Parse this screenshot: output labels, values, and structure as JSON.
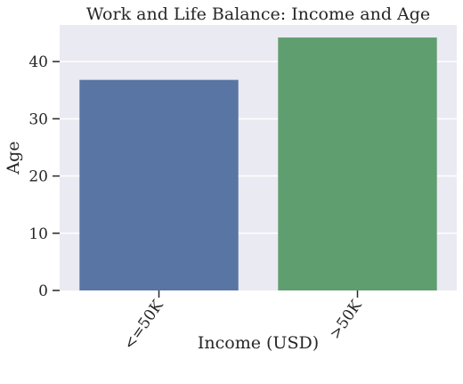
{
  "chart_data": {
    "type": "bar",
    "title": "Work and Life Balance: Income and Age",
    "xlabel": "Income (USD)",
    "ylabel": "Age",
    "categories": [
      "<=50K",
      ">50K"
    ],
    "values": [
      36.8,
      44.2
    ],
    "colors": [
      "#5975a4",
      "#5f9e6e"
    ],
    "ylim": [
      0,
      46.4
    ],
    "yticks": [
      0,
      10,
      20,
      30,
      40
    ],
    "grid": true,
    "background": "#eaeaf2"
  }
}
